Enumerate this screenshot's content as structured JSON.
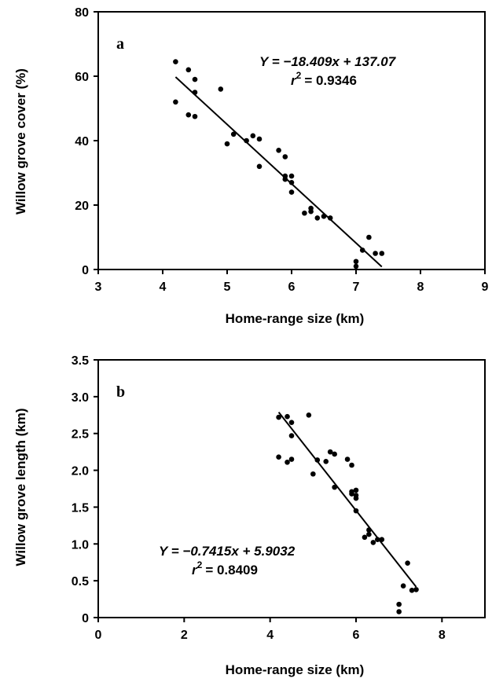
{
  "chart_data": [
    {
      "type": "scatter",
      "panel_label": "a",
      "xlabel": "Home-range size (km)",
      "ylabel": "Willow grove cover (%)",
      "xlim": [
        3,
        9
      ],
      "ylim": [
        0,
        80
      ],
      "xticks": [
        "3",
        "4",
        "5",
        "6",
        "7",
        "8",
        "9"
      ],
      "yticks": [
        "0",
        "20",
        "40",
        "60",
        "80"
      ],
      "equation": "Y = −18.409x + 137.07",
      "r2_label": "r",
      "r2_value": "= 0.9346",
      "fit": {
        "slope": -18.409,
        "intercept": 137.07,
        "x_range": [
          4.2,
          7.4
        ]
      },
      "points": [
        [
          4.2,
          64.5
        ],
        [
          4.2,
          52
        ],
        [
          4.4,
          62
        ],
        [
          4.4,
          48
        ],
        [
          4.5,
          59
        ],
        [
          4.5,
          55
        ],
        [
          4.5,
          47.5
        ],
        [
          4.9,
          56
        ],
        [
          5.0,
          39
        ],
        [
          5.1,
          42
        ],
        [
          5.3,
          40
        ],
        [
          5.4,
          41.5
        ],
        [
          5.5,
          40.5
        ],
        [
          5.5,
          32
        ],
        [
          5.8,
          37
        ],
        [
          5.9,
          35
        ],
        [
          5.9,
          29
        ],
        [
          5.9,
          28
        ],
        [
          6.0,
          29
        ],
        [
          6.0,
          27
        ],
        [
          6.0,
          24
        ],
        [
          6.2,
          17.5
        ],
        [
          6.3,
          19
        ],
        [
          6.3,
          18
        ],
        [
          6.4,
          16
        ],
        [
          6.5,
          16.5
        ],
        [
          6.6,
          16
        ],
        [
          7.0,
          2.5
        ],
        [
          7.0,
          1
        ],
        [
          7.1,
          6
        ],
        [
          7.2,
          10
        ],
        [
          7.3,
          5
        ],
        [
          7.4,
          5
        ]
      ]
    },
    {
      "type": "scatter",
      "panel_label": "b",
      "xlabel": "Home-range size (km)",
      "ylabel": "Willow grove length (km)",
      "xlim": [
        0,
        9
      ],
      "ylim": [
        0,
        3.5
      ],
      "xticks": [
        "0",
        "2",
        "4",
        "6",
        "8"
      ],
      "yticks": [
        "0",
        "0.5",
        "1.0",
        "1.5",
        "2.0",
        "2.5",
        "3.0",
        "3.5"
      ],
      "equation": "Y = −0.7415x + 5.9032",
      "r2_label": "r",
      "r2_value": "= 0.8409",
      "fit": {
        "slope": -0.7415,
        "intercept": 5.9032,
        "x_range": [
          4.2,
          7.4
        ]
      },
      "points": [
        [
          4.2,
          2.72
        ],
        [
          4.2,
          2.18
        ],
        [
          4.4,
          2.73
        ],
        [
          4.4,
          2.11
        ],
        [
          4.5,
          2.65
        ],
        [
          4.5,
          2.47
        ],
        [
          4.5,
          2.15
        ],
        [
          4.9,
          2.75
        ],
        [
          5.0,
          1.95
        ],
        [
          5.1,
          2.14
        ],
        [
          5.3,
          2.12
        ],
        [
          5.4,
          2.25
        ],
        [
          5.5,
          2.22
        ],
        [
          5.5,
          1.77
        ],
        [
          5.8,
          2.15
        ],
        [
          5.9,
          2.07
        ],
        [
          5.9,
          1.71
        ],
        [
          5.9,
          1.68
        ],
        [
          6.0,
          1.73
        ],
        [
          6.0,
          1.66
        ],
        [
          6.0,
          1.62
        ],
        [
          6.0,
          1.45
        ],
        [
          6.2,
          1.09
        ],
        [
          6.3,
          1.19
        ],
        [
          6.3,
          1.13
        ],
        [
          6.4,
          1.02
        ],
        [
          6.5,
          1.06
        ],
        [
          6.6,
          1.06
        ],
        [
          7.0,
          0.18
        ],
        [
          7.0,
          0.08
        ],
        [
          7.1,
          0.43
        ],
        [
          7.2,
          0.74
        ],
        [
          7.3,
          0.37
        ],
        [
          7.4,
          0.38
        ]
      ]
    }
  ]
}
